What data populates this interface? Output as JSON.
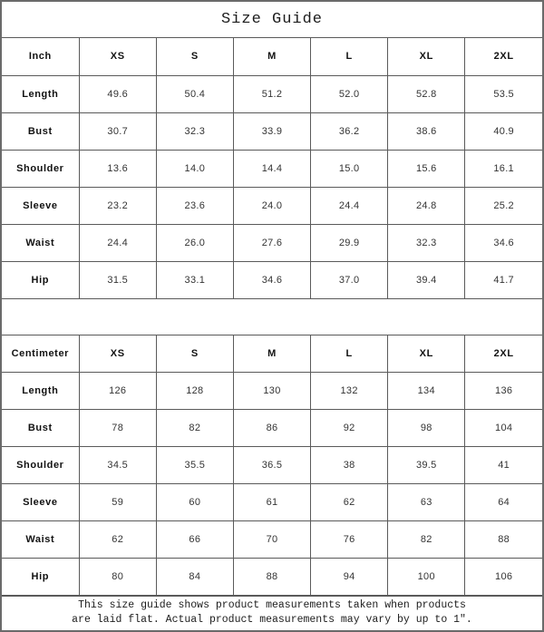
{
  "title": "Size Guide",
  "chart_data": [
    {
      "type": "table",
      "title": "Inch",
      "columns": [
        "XS",
        "S",
        "M",
        "L",
        "XL",
        "2XL"
      ],
      "rows": [
        {
          "label": "Length",
          "values": [
            "49.6",
            "50.4",
            "51.2",
            "52.0",
            "52.8",
            "53.5"
          ]
        },
        {
          "label": "Bust",
          "values": [
            "30.7",
            "32.3",
            "33.9",
            "36.2",
            "38.6",
            "40.9"
          ]
        },
        {
          "label": "Shoulder",
          "values": [
            "13.6",
            "14.0",
            "14.4",
            "15.0",
            "15.6",
            "16.1"
          ]
        },
        {
          "label": "Sleeve",
          "values": [
            "23.2",
            "23.6",
            "24.0",
            "24.4",
            "24.8",
            "25.2"
          ]
        },
        {
          "label": "Waist",
          "values": [
            "24.4",
            "26.0",
            "27.6",
            "29.9",
            "32.3",
            "34.6"
          ]
        },
        {
          "label": "Hip",
          "values": [
            "31.5",
            "33.1",
            "34.6",
            "37.0",
            "39.4",
            "41.7"
          ]
        }
      ]
    },
    {
      "type": "table",
      "title": "Centimeter",
      "columns": [
        "XS",
        "S",
        "M",
        "L",
        "XL",
        "2XL"
      ],
      "rows": [
        {
          "label": "Length",
          "values": [
            "126",
            "128",
            "130",
            "132",
            "134",
            "136"
          ]
        },
        {
          "label": "Bust",
          "values": [
            "78",
            "82",
            "86",
            "92",
            "98",
            "104"
          ]
        },
        {
          "label": "Shoulder",
          "values": [
            "34.5",
            "35.5",
            "36.5",
            "38",
            "39.5",
            "41"
          ]
        },
        {
          "label": "Sleeve",
          "values": [
            "59",
            "60",
            "61",
            "62",
            "63",
            "64"
          ]
        },
        {
          "label": "Waist",
          "values": [
            "62",
            "66",
            "70",
            "76",
            "82",
            "88"
          ]
        },
        {
          "label": "Hip",
          "values": [
            "80",
            "84",
            "88",
            "94",
            "100",
            "106"
          ]
        }
      ]
    }
  ],
  "footer": {
    "line1": "This size guide shows product measurements taken when products",
    "line2": "are laid flat. Actual product measurements may vary by up to 1″."
  },
  "colors": {
    "background": "#ffffff",
    "border": "#5a5a5a",
    "heading_text": "#111111",
    "value_text": "#333333"
  }
}
